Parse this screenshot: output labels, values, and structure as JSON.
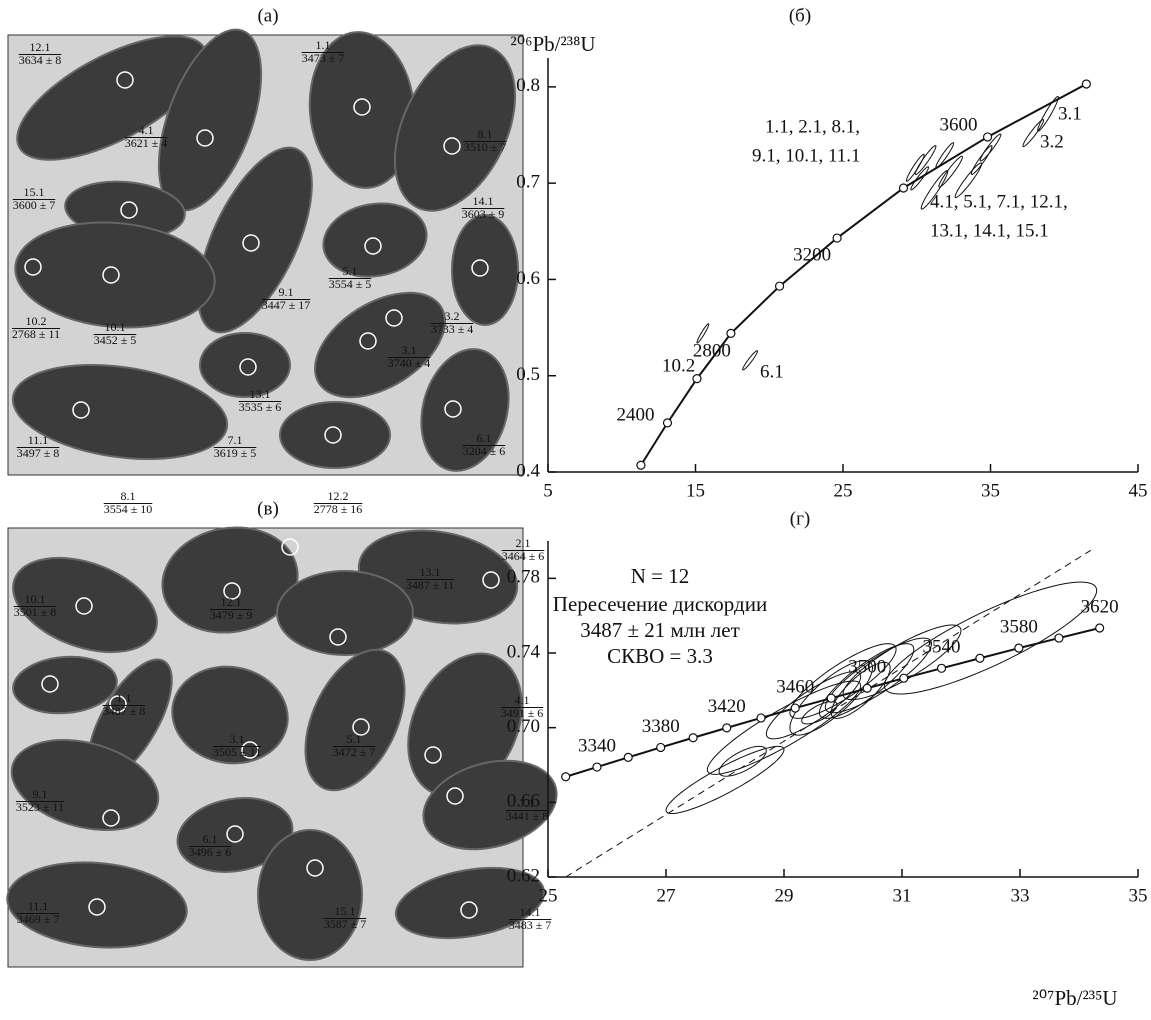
{
  "panels": [
    {
      "title": "(а)",
      "labels": [
        {
          "id": "12.1",
          "age": "3634 ± 8"
        },
        {
          "id": "1.1",
          "age": "3473 ± 7"
        },
        {
          "id": "4.1",
          "age": "3621 ± 4"
        },
        {
          "id": "8.1",
          "age": "3510 ± 7"
        },
        {
          "id": "15.1",
          "age": "3600 ± 7"
        },
        {
          "id": "14.1",
          "age": "3603 ± 9"
        },
        {
          "id": "9.1",
          "age": "3447 ± 17"
        },
        {
          "id": "5.1",
          "age": "3554 ± 5"
        },
        {
          "id": "10.2",
          "age": "2768 ± 11"
        },
        {
          "id": "10.1",
          "age": "3452 ± 5"
        },
        {
          "id": "3.2",
          "age": "3733 ± 4"
        },
        {
          "id": "3.1",
          "age": "3740 ± 4"
        },
        {
          "id": "13.1",
          "age": "3535 ± 6"
        },
        {
          "id": "11.1",
          "age": "3497 ± 8"
        },
        {
          "id": "7.1",
          "age": "3619 ± 5"
        },
        {
          "id": "6.1",
          "age": "3204 ± 6"
        }
      ]
    },
    {
      "title": "(в)",
      "labels": [
        {
          "id": "8.1",
          "age": "3554 ± 10"
        },
        {
          "id": "12.2",
          "age": "2778 ± 16"
        },
        {
          "id": "2.1",
          "age": "3464 ± 6"
        },
        {
          "id": "10.1",
          "age": "3501 ± 8"
        },
        {
          "id": "13.1",
          "age": "3487 ± 11"
        },
        {
          "id": "12.1",
          "age": "3479 ± 9"
        },
        {
          "id": "1.1",
          "age": "3487 ± 8"
        },
        {
          "id": "3.1",
          "age": "3505 ± 11"
        },
        {
          "id": "5.1",
          "age": "3472 ± 7"
        },
        {
          "id": "4.1",
          "age": "3491 ± 6"
        },
        {
          "id": "9.1",
          "age": "3523 ± 11"
        },
        {
          "id": "7.1",
          "age": "3441 ± 8"
        },
        {
          "id": "6.1",
          "age": "3496 ± 6"
        },
        {
          "id": "11.1",
          "age": "3469 ± 7"
        },
        {
          "id": "15.1",
          "age": "3587 ± 7"
        },
        {
          "id": "14.1",
          "age": "3483 ± 7"
        }
      ]
    }
  ],
  "chart_data": [
    {
      "type": "concordia",
      "title": "(б)",
      "ylabel": "²⁰⁶Pb/²³⁸U",
      "xlim": [
        5,
        45
      ],
      "xticks": [
        5,
        15,
        25,
        35,
        45
      ],
      "ylim": [
        0.4,
        0.83
      ],
      "yticks": [
        0.4,
        0.5,
        0.6,
        0.7,
        0.8
      ],
      "concordia": {
        "x": [
          11.3,
          13.1,
          15.1,
          17.4,
          20.7,
          24.6,
          29.1,
          34.8,
          41.5
        ],
        "y": [
          0.407,
          0.451,
          0.497,
          0.544,
          0.593,
          0.643,
          0.695,
          0.748,
          0.803
        ],
        "ages": [
          null,
          2400,
          null,
          2800,
          null,
          3200,
          null,
          3600,
          null
        ]
      },
      "ellipses": {
        "x": [
          29.9,
          30.6,
          31.9,
          32.3,
          33.5,
          34.4,
          35.0,
          31.2,
          30.2,
          38.9,
          37.9,
          15.5,
          18.7
        ],
        "y": [
          0.716,
          0.724,
          0.729,
          0.712,
          0.703,
          0.724,
          0.737,
          0.693,
          0.705,
          0.772,
          0.752,
          0.544,
          0.516
        ],
        "x_err": [
          0.6,
          0.7,
          0.6,
          0.8,
          0.9,
          0.7,
          0.7,
          0.9,
          0.6,
          0.7,
          0.7,
          0.4,
          0.5
        ],
        "y_err": [
          0.014,
          0.015,
          0.013,
          0.016,
          0.018,
          0.015,
          0.014,
          0.02,
          0.012,
          0.018,
          0.014,
          0.01,
          0.01
        ],
        "rho": [
          0.95,
          0.95,
          0.95,
          0.95,
          0.95,
          0.95,
          0.95,
          0.95,
          0.95,
          0.95,
          0.95,
          0.95,
          0.95
        ]
      },
      "annotations": [
        "1.1, 2.1, 8.1,",
        "9.1, 10.1, 11.1",
        "3.1",
        "3.2",
        "4.1, 5.1, 7.1, 12.1,",
        "13.1, 14.1, 15.1",
        "10.2",
        "6.1"
      ]
    },
    {
      "type": "concordia",
      "title": "(г)",
      "xlabel": "²⁰⁷Pb/²³⁵U",
      "xlim": [
        25,
        35
      ],
      "xticks": [
        25,
        27,
        29,
        31,
        33,
        35
      ],
      "ylim": [
        0.62,
        0.8
      ],
      "yticks": [
        0.62,
        0.66,
        {
          "value": 0.7,
          "label": "0.70"
        },
        0.74,
        0.78
      ],
      "concordia": {
        "x": [
          25.3,
          25.83,
          26.36,
          26.91,
          27.46,
          28.03,
          28.61,
          29.19,
          29.8,
          30.41,
          31.03,
          31.67,
          32.32,
          32.98,
          33.66,
          34.35
        ],
        "y": [
          0.6737,
          0.6789,
          0.6841,
          0.6894,
          0.6946,
          0.6999,
          0.7052,
          0.7105,
          0.7158,
          0.7211,
          0.7265,
          0.7318,
          0.7372,
          0.7426,
          0.748,
          0.7534
        ],
        "ages": [
          null,
          3340,
          null,
          3380,
          null,
          3420,
          null,
          3460,
          null,
          3500,
          null,
          3540,
          null,
          3580,
          null,
          3620
        ]
      },
      "discordia": {
        "x": [
          25.3,
          34.2
        ],
        "y": [
          0.62,
          0.795
        ]
      },
      "ellipses": {
        "x": [
          28.0,
          28.3,
          29.0,
          29.5,
          29.8,
          30.0,
          30.4,
          30.6,
          30.3,
          31.0,
          32.5,
          29.6
        ],
        "y": [
          0.672,
          0.682,
          0.7,
          0.712,
          0.716,
          0.725,
          0.725,
          0.728,
          0.72,
          0.735,
          0.748,
          0.708
        ],
        "x_err": [
          1.0,
          0.4,
          1.3,
          0.8,
          0.7,
          0.9,
          0.8,
          0.9,
          0.5,
          1.0,
          1.8,
          0.3
        ],
        "y_err": [
          0.018,
          0.008,
          0.025,
          0.018,
          0.02,
          0.02,
          0.02,
          0.02,
          0.015,
          0.02,
          0.03,
          0.006
        ],
        "rho": [
          0.9,
          0.7,
          0.9,
          0.85,
          0.8,
          0.85,
          0.85,
          0.85,
          0.8,
          0.85,
          0.85,
          0.7
        ]
      },
      "annotations": [
        "N = 12",
        "Пересечение дискордии",
        "3487 ± 21 млн лет",
        "СКВО = 3.3"
      ]
    }
  ]
}
